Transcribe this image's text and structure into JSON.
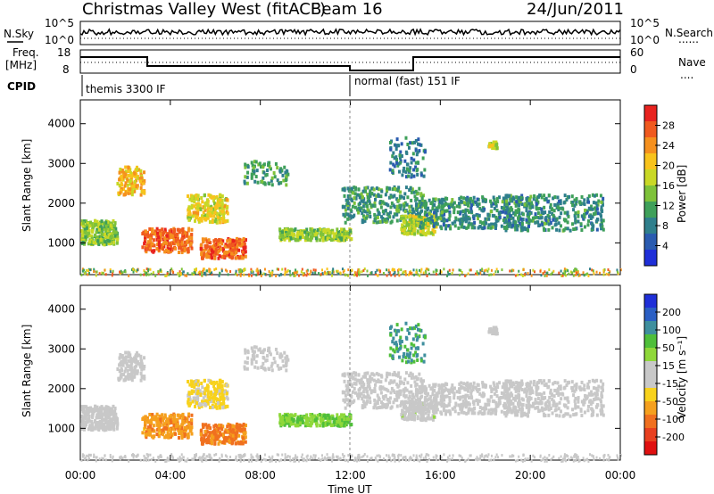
{
  "header": {
    "title": "Christmas Valley West (fitACF)",
    "beam": "Beam 16",
    "date": "24/Jun/2011"
  },
  "panels": {
    "nsky": {
      "label": "N.Sky",
      "tick_top": "10^5",
      "tick_bottom": "10^0",
      "right_top": "10^5",
      "right_bottom": "10^0",
      "right_label": "N.Search",
      "right_legend": "......"
    },
    "freq": {
      "label_line1": "Freq.",
      "label_line2": "[MHz]",
      "tick_top": "18",
      "tick_bottom": "8",
      "right_top": "60",
      "right_bottom": "0",
      "right_label": "Nave",
      "right_legend": "...."
    },
    "cpid": {
      "label": "CPID",
      "mode1": "themis 3300 IF",
      "mode2": "normal (fast) 151 IF"
    }
  },
  "chart_data": [
    {
      "type": "heatmap",
      "name": "power",
      "ylabel": "Slant Range [km]",
      "yticks": [
        "1000",
        "2000",
        "3000",
        "4000"
      ],
      "ylim": [
        200,
        4600
      ],
      "xlim": [
        0,
        24
      ],
      "colorbar": {
        "label": "Power [dB]",
        "ticks": [
          "28",
          "24",
          "20",
          "16",
          "12",
          "8",
          "4"
        ],
        "colors": [
          "#e8231f",
          "#f05a1f",
          "#f5901e",
          "#f8c31c",
          "#c9d826",
          "#7ec23a",
          "#3fa05a",
          "#2f7f8c",
          "#2a5bb0",
          "#1f2fd8"
        ],
        "range": [
          0,
          30
        ]
      }
    },
    {
      "type": "heatmap",
      "name": "velocity",
      "ylabel": "Slant Range [km]",
      "yticks": [
        "1000",
        "2000",
        "3000",
        "4000"
      ],
      "ylim": [
        200,
        4600
      ],
      "xlim": [
        0,
        24
      ],
      "colorbar": {
        "label": "Velocity [m s⁻¹]",
        "ticks": [
          "200",
          "100",
          "50",
          "15",
          "-15",
          "-50",
          "-100",
          "-200"
        ],
        "colors": [
          "#1f2fd8",
          "#2b5fc4",
          "#3f8f9e",
          "#4fbf3a",
          "#8fd83a",
          "#c8c8c8",
          "#c8c8c8",
          "#f8d21c",
          "#f5a01e",
          "#f0701f",
          "#e8401f",
          "#e01010"
        ],
        "range": [
          -250,
          250
        ]
      }
    }
  ],
  "xaxis": {
    "ticks": [
      "00:00",
      "04:00",
      "08:00",
      "12:00",
      "16:00",
      "20:00",
      "00:00"
    ],
    "label": "Time UT"
  }
}
